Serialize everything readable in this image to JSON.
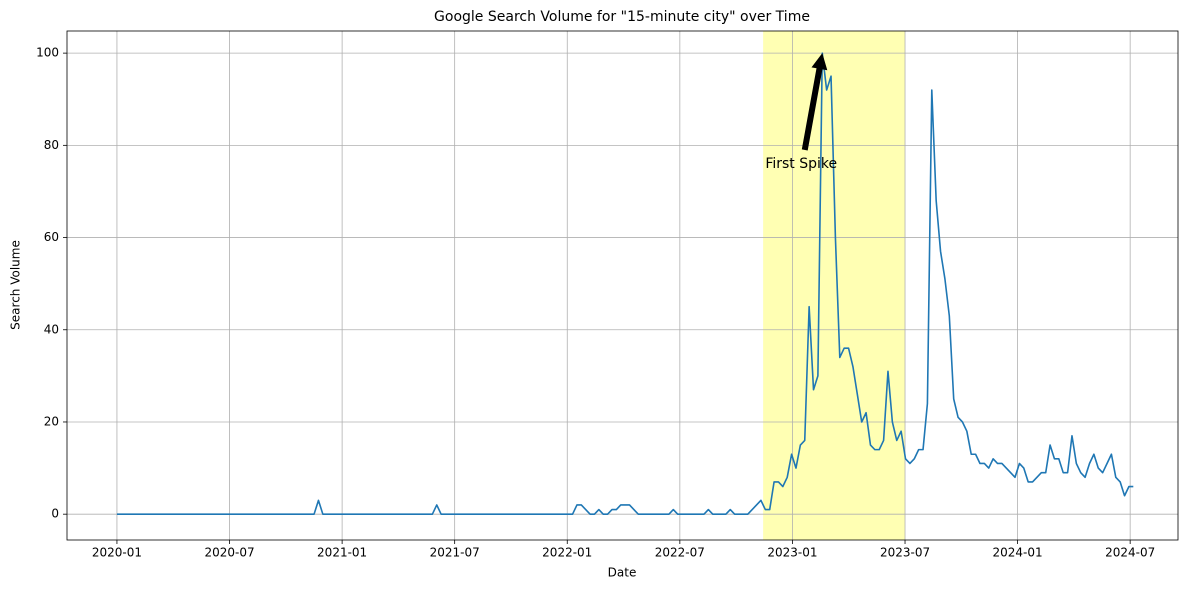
{
  "chart_data": {
    "type": "line",
    "title": "Google Search Volume for \"15-minute city\" over Time",
    "x_label": "Date",
    "y_label": "Search Volume",
    "x": [
      0,
      1,
      2,
      3,
      4,
      5,
      6,
      7,
      8,
      9,
      10,
      11,
      12,
      13,
      14,
      15,
      16,
      17,
      18,
      19,
      20,
      21,
      22,
      23,
      24,
      25,
      26,
      27,
      28,
      29,
      30,
      31,
      32,
      33,
      34,
      35,
      36,
      37,
      38,
      39,
      40,
      41,
      42,
      43,
      44,
      45,
      46,
      47,
      48,
      49,
      50,
      51,
      52,
      53,
      54,
      55,
      56,
      57,
      58,
      59,
      60,
      61,
      62,
      63,
      64,
      65,
      66,
      67,
      68,
      69,
      70,
      71,
      72,
      73,
      74,
      75,
      76,
      77,
      78,
      79,
      80,
      81,
      82,
      83,
      84,
      85,
      86,
      87,
      88,
      89,
      90,
      91,
      92,
      93,
      94,
      95,
      96,
      97,
      98,
      99,
      100,
      101,
      102,
      103,
      104,
      105,
      106,
      107,
      108,
      109,
      110,
      111,
      112,
      113,
      114,
      115,
      116,
      117,
      118,
      119,
      120,
      121,
      122,
      123,
      124,
      125,
      126,
      127,
      128,
      129,
      130,
      131,
      132,
      133,
      134,
      135,
      136,
      137,
      138,
      139,
      140,
      141,
      142,
      143,
      144,
      145,
      146,
      147,
      148,
      149,
      150,
      151,
      152,
      153,
      154,
      155,
      156,
      157,
      158,
      159,
      160,
      161,
      162,
      163,
      164,
      165,
      166,
      167,
      168,
      169,
      170,
      171,
      172,
      173,
      174,
      175,
      176,
      177,
      178,
      179,
      180,
      181,
      182,
      183,
      184,
      185,
      186,
      187,
      188,
      189,
      190,
      191,
      192,
      193,
      194,
      195,
      196,
      197,
      198,
      199,
      200,
      201,
      202,
      203,
      204,
      205,
      206,
      207,
      208,
      209,
      210,
      211,
      212,
      213,
      214,
      215,
      216,
      217,
      218,
      219,
      220,
      221,
      222,
      223,
      224,
      225,
      226,
      227,
      228,
      229,
      230,
      231,
      232
    ],
    "values": [
      0,
      0,
      0,
      0,
      0,
      0,
      0,
      0,
      0,
      0,
      0,
      0,
      0,
      0,
      0,
      0,
      0,
      0,
      0,
      0,
      0,
      0,
      0,
      0,
      0,
      0,
      0,
      0,
      0,
      0,
      0,
      0,
      0,
      0,
      0,
      0,
      0,
      0,
      0,
      0,
      0,
      0,
      0,
      0,
      0,
      0,
      3,
      0,
      0,
      0,
      0,
      0,
      0,
      0,
      0,
      0,
      0,
      0,
      0,
      0,
      0,
      0,
      0,
      0,
      0,
      0,
      0,
      0,
      0,
      0,
      0,
      0,
      0,
      2,
      0,
      0,
      0,
      0,
      0,
      0,
      0,
      0,
      0,
      0,
      0,
      0,
      0,
      0,
      0,
      0,
      0,
      0,
      0,
      0,
      0,
      0,
      0,
      0,
      0,
      0,
      0,
      0,
      0,
      0,
      0,
      2,
      2,
      1,
      0,
      0,
      1,
      0,
      0,
      1,
      1,
      2,
      2,
      2,
      1,
      0,
      0,
      0,
      0,
      0,
      0,
      0,
      0,
      1,
      0,
      0,
      0,
      0,
      0,
      0,
      0,
      1,
      0,
      0,
      0,
      0,
      1,
      0,
      0,
      0,
      0,
      1,
      2,
      3,
      1,
      1,
      7,
      7,
      6,
      8,
      13,
      10,
      15,
      16,
      45,
      27,
      30,
      100,
      92,
      95,
      60,
      34,
      36,
      36,
      32,
      26,
      20,
      22,
      15,
      14,
      14,
      16,
      31,
      20,
      16,
      18,
      12,
      11,
      12,
      14,
      14,
      24,
      92,
      68,
      57,
      51,
      43,
      25,
      21,
      20,
      18,
      13,
      13,
      11,
      11,
      10,
      12,
      11,
      11,
      10,
      9,
      8,
      11,
      10,
      7,
      7,
      8,
      9,
      9,
      15,
      12,
      12,
      9,
      9,
      17,
      11,
      9,
      8,
      11,
      13,
      10,
      9,
      11,
      13,
      8,
      7,
      4,
      6,
      6
    ],
    "color": "#1f77b4",
    "xlim": [
      -11.4,
      242.2
    ],
    "ylim": [
      -5.6,
      104.8
    ],
    "xticks": [
      {
        "value": 0,
        "label": "2020-01"
      },
      {
        "value": 25.7,
        "label": "2020-07"
      },
      {
        "value": 51.4,
        "label": "2021-01"
      },
      {
        "value": 77.09,
        "label": "2021-07"
      },
      {
        "value": 102.79,
        "label": "2022-01"
      },
      {
        "value": 128.49,
        "label": "2022-07"
      },
      {
        "value": 154.19,
        "label": "2023-01"
      },
      {
        "value": 179.89,
        "label": "2023-07"
      },
      {
        "value": 205.58,
        "label": "2024-01"
      },
      {
        "value": 231.28,
        "label": "2024-07"
      }
    ],
    "yticks": [
      0,
      20,
      40,
      60,
      80,
      100
    ],
    "grid": true,
    "highlight": {
      "start": 147.5,
      "end": 179.89,
      "color": "#ffffb3"
    },
    "annotation": {
      "text": "First Spike",
      "xy": [
        161,
        100
      ],
      "arrow_from": [
        157,
        79
      ],
      "xytext": [
        148,
        76
      ]
    }
  }
}
